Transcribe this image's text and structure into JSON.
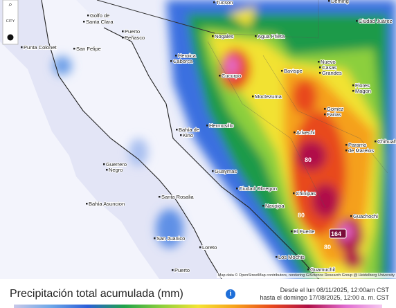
{
  "map": {
    "cities": [
      "Tucson",
      "Deming",
      "Golfo de",
      "Santa Clara",
      "Puerto",
      "Peñasco",
      "Nogales",
      "Agua Prieta",
      "Ciudad Juárez",
      "Punta Colonet",
      "San Felipe",
      "Heroica",
      "Caborca",
      "Bavispe",
      "Nuevo",
      "Casas",
      "Grandes",
      "Cucurpo",
      "Flores",
      "Magon",
      "Moctezuma",
      "Gomez",
      "Farias",
      "Hermosillo",
      "Arivechi",
      "Bahía de",
      "Kino",
      "Chihuahua",
      "Paramo",
      "de Marelos",
      "Guerrero",
      "Negro",
      "Guaymas",
      "Ciudad Obregon",
      "Santa Rosalia",
      "Chinipas",
      "Bahía Asuncion",
      "Navojoa",
      "Guachochi",
      "San Juanico",
      "El Fuerte",
      "Loreto",
      "Los Mochis",
      "Puerto",
      "Guamuchil"
    ],
    "value_labels": [
      "164",
      "80",
      "80",
      "80"
    ],
    "controls": [
      "CITY"
    ],
    "attribution": "Map data © OpenStreetMap contributors, rendering GIScience Research Group @ Heidelberg University"
  },
  "footer": {
    "title": "Precipitación total acumulada (mm)",
    "info": "i",
    "dates": [
      "Desde el lun 08/11/2025, 12:00am CST",
      "hasta el domingo 17/08/2025, 12:00 a. m. CST"
    ]
  }
}
